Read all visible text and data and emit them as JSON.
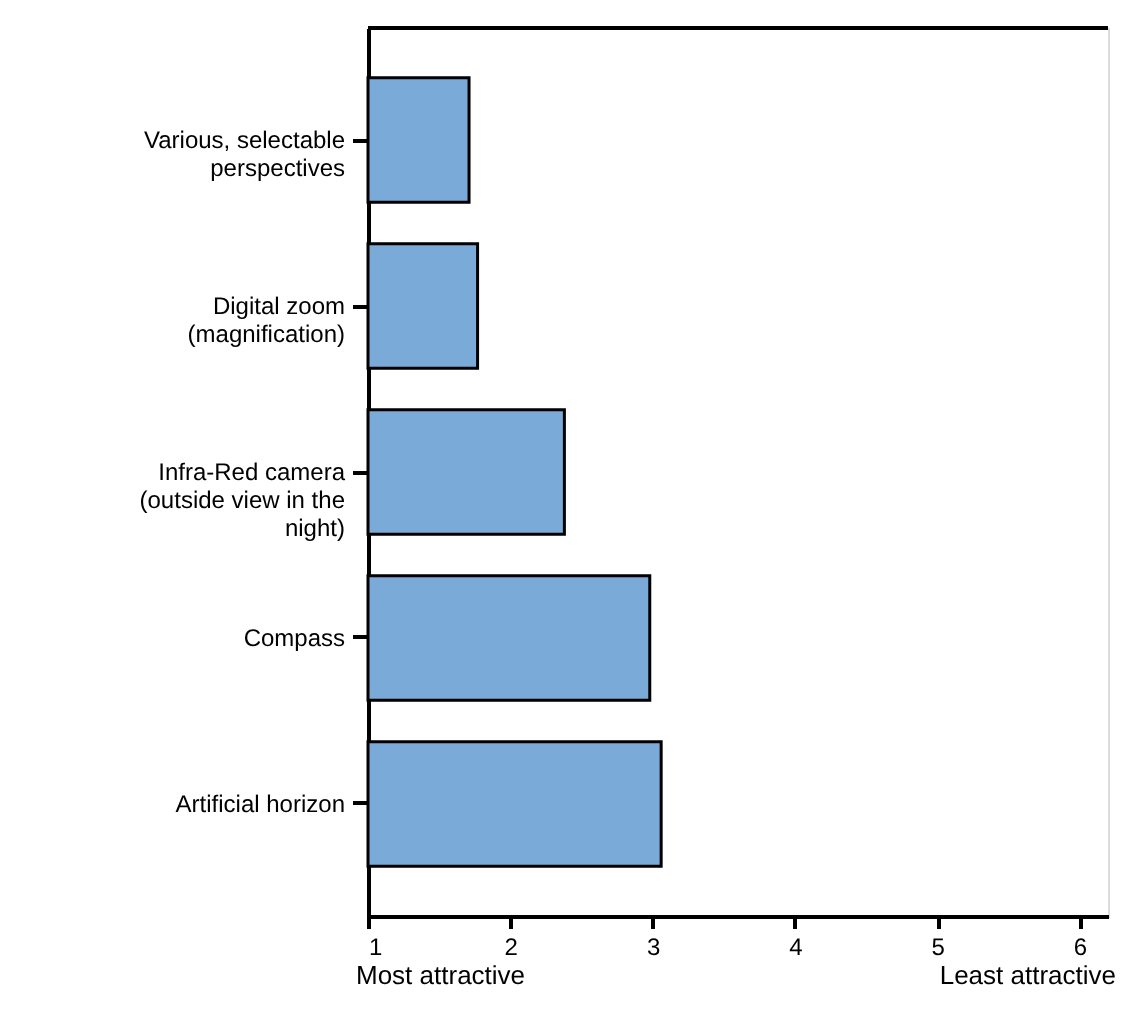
{
  "chart_data": {
    "type": "bar",
    "orientation": "horizontal",
    "categories": [
      "Various, selectable perspectives",
      "Digital zoom (magnification)",
      "Infra-Red camera (outside view in the night)",
      "Compass",
      "Artificial horizon"
    ],
    "values": [
      1.71,
      1.77,
      2.38,
      2.98,
      3.06
    ],
    "color": "#7aaad8",
    "xlim": [
      1,
      6.2
    ],
    "xticks": [
      1,
      2,
      3,
      4,
      5,
      6
    ],
    "annotations": [
      "Most attractive",
      "Least attractive"
    ],
    "grid": false
  }
}
